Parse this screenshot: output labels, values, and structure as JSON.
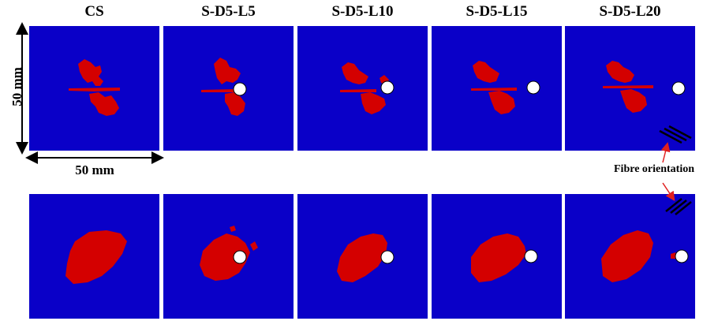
{
  "columns": [
    {
      "title": "CS",
      "hole": false
    },
    {
      "title": "S-D5-L5",
      "hole": true
    },
    {
      "title": "S-D5-L10",
      "hole": true
    },
    {
      "title": "S-D5-L15",
      "hole": true
    },
    {
      "title": "S-D5-L20",
      "hole": true
    }
  ],
  "dimensions": {
    "vertical": "50 mm",
    "horizontal": "50 mm"
  },
  "fibre_label": "Fibre orientation",
  "colors": {
    "panel": "#0a00c8",
    "damage": "#d40000",
    "hole": "#ffffff",
    "annotation_arrow": "#e02020"
  }
}
